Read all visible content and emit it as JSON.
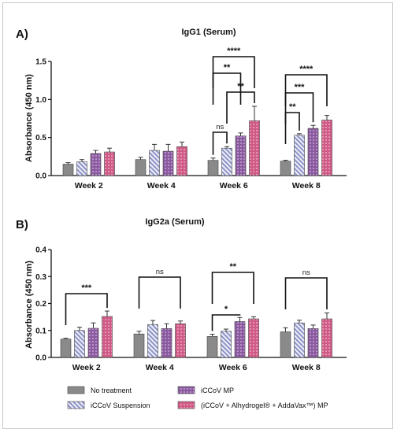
{
  "colors": {
    "no_treatment": "#8a8a8a",
    "suspension_bg": "#eef0fb",
    "suspension_stripe": "#8d92c4",
    "mp": "#8a5a9e",
    "mp_dot": "#d9b6e8",
    "combo": "#cf5a86",
    "combo_dot": "#f3bcd2"
  },
  "legend": {
    "no_treatment": "No treatment",
    "suspension": "iCCoV Suspension",
    "mp": "iCCoV MP",
    "combo": "(iCCoV + Alhydrogel® + AddaVax™) MP"
  },
  "chart_data": [
    {
      "panel": "A)",
      "type": "bar",
      "title": "IgG1 (Serum)",
      "ylabel": "Absorbance (450 nm)",
      "ylim": [
        0,
        1.5
      ],
      "yticks": [
        "0.0",
        "0.5",
        "1.0",
        "1.5"
      ],
      "categories": [
        "Week 2",
        "Week 4",
        "Week 6",
        "Week 8"
      ],
      "series": [
        {
          "name": "No treatment",
          "values": [
            0.15,
            0.21,
            0.2,
            0.19
          ],
          "errors": [
            0.02,
            0.03,
            0.03,
            0.01
          ]
        },
        {
          "name": "iCCoV Suspension",
          "values": [
            0.18,
            0.33,
            0.36,
            0.53
          ],
          "errors": [
            0.03,
            0.08,
            0.02,
            0.02
          ]
        },
        {
          "name": "iCCoV MP",
          "values": [
            0.29,
            0.32,
            0.52,
            0.62
          ],
          "errors": [
            0.04,
            0.09,
            0.04,
            0.04
          ]
        },
        {
          "name": "(iCCoV + Alhydrogel® + AddaVax™) MP",
          "values": [
            0.31,
            0.38,
            0.72,
            0.73
          ],
          "errors": [
            0.05,
            0.06,
            0.19,
            0.06
          ]
        }
      ],
      "annotations": [
        {
          "label": "****",
          "group": 2,
          "from": 0,
          "to": 3
        },
        {
          "label": "**",
          "group": 2,
          "from": 0,
          "to": 2
        },
        {
          "label": "**",
          "group": 2,
          "from": 1,
          "to": 3
        },
        {
          "label": "ns",
          "group": 2,
          "from": 0,
          "to": 1
        },
        {
          "label": "****",
          "group": 3,
          "from": 0,
          "to": 3
        },
        {
          "label": "***",
          "group": 3,
          "from": 0,
          "to": 2
        },
        {
          "label": "**",
          "group": 3,
          "from": 0,
          "to": 1
        }
      ]
    },
    {
      "panel": "B)",
      "type": "bar",
      "title": "IgG2a (Serum)",
      "ylabel": "Absorbance (450 nm)",
      "ylim": [
        0,
        0.4
      ],
      "yticks": [
        "0.0",
        "0.1",
        "0.2",
        "0.3",
        "0.4"
      ],
      "categories": [
        "Week 2",
        "Week 4",
        "Week 6",
        "Week 8"
      ],
      "series": [
        {
          "name": "No treatment",
          "values": [
            0.068,
            0.087,
            0.078,
            0.095
          ],
          "errors": [
            0.003,
            0.01,
            0.008,
            0.015
          ]
        },
        {
          "name": "iCCoV Suspension",
          "values": [
            0.1,
            0.122,
            0.097,
            0.128
          ],
          "errors": [
            0.012,
            0.015,
            0.008,
            0.01
          ]
        },
        {
          "name": "iCCoV MP",
          "values": [
            0.108,
            0.107,
            0.133,
            0.107
          ],
          "errors": [
            0.02,
            0.018,
            0.015,
            0.013
          ]
        },
        {
          "name": "(iCCoV + Alhydrogel® + AddaVax™) MP",
          "values": [
            0.152,
            0.125,
            0.143,
            0.143
          ],
          "errors": [
            0.02,
            0.01,
            0.008,
            0.022
          ]
        }
      ],
      "annotations": [
        {
          "label": "***",
          "group": 0,
          "from": 0,
          "to": 3
        },
        {
          "label": "ns",
          "group": 1,
          "from": 0,
          "to": 3
        },
        {
          "label": "**",
          "group": 2,
          "from": 0,
          "to": 3
        },
        {
          "label": "*",
          "group": 2,
          "from": 0,
          "to": 2
        },
        {
          "label": "ns",
          "group": 3,
          "from": 0,
          "to": 3
        }
      ]
    }
  ]
}
